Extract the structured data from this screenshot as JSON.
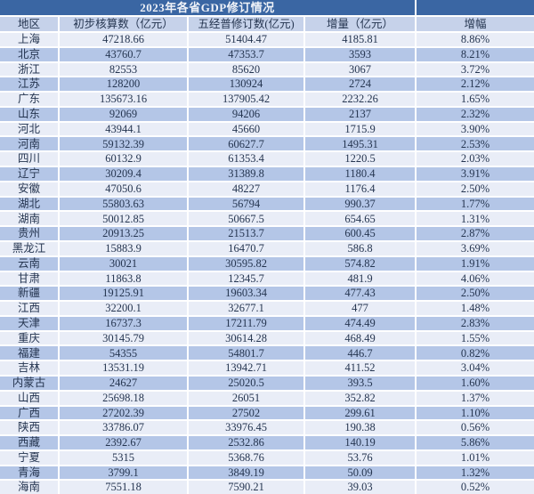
{
  "chart_data": {
    "type": "table",
    "title": "2023年各省GDP修订情况",
    "columns": [
      "地区",
      "初步核算数（亿元）",
      "五经普修订数(亿元)",
      "增量（亿元）",
      "增幅"
    ],
    "rows": [
      [
        "上海",
        "47218.66",
        "51404.47",
        "4185.81",
        "8.86%"
      ],
      [
        "北京",
        "43760.7",
        "47353.7",
        "3593",
        "8.21%"
      ],
      [
        "浙江",
        "82553",
        "85620",
        "3067",
        "3.72%"
      ],
      [
        "江苏",
        "128200",
        "130924",
        "2724",
        "2.12%"
      ],
      [
        "广东",
        "135673.16",
        "137905.42",
        "2232.26",
        "1.65%"
      ],
      [
        "山东",
        "92069",
        "94206",
        "2137",
        "2.32%"
      ],
      [
        "河北",
        "43944.1",
        "45660",
        "1715.9",
        "3.90%"
      ],
      [
        "河南",
        "59132.39",
        "60627.7",
        "1495.31",
        "2.53%"
      ],
      [
        "四川",
        "60132.9",
        "61353.4",
        "1220.5",
        "2.03%"
      ],
      [
        "辽宁",
        "30209.4",
        "31389.8",
        "1180.4",
        "3.91%"
      ],
      [
        "安徽",
        "47050.6",
        "48227",
        "1176.4",
        "2.50%"
      ],
      [
        "湖北",
        "55803.63",
        "56794",
        "990.37",
        "1.77%"
      ],
      [
        "湖南",
        "50012.85",
        "50667.5",
        "654.65",
        "1.31%"
      ],
      [
        "贵州",
        "20913.25",
        "21513.7",
        "600.45",
        "2.87%"
      ],
      [
        "黑龙江",
        "15883.9",
        "16470.7",
        "586.8",
        "3.69%"
      ],
      [
        "云南",
        "30021",
        "30595.82",
        "574.82",
        "1.91%"
      ],
      [
        "甘肃",
        "11863.8",
        "12345.7",
        "481.9",
        "4.06%"
      ],
      [
        "新疆",
        "19125.91",
        "19603.34",
        "477.43",
        "2.50%"
      ],
      [
        "江西",
        "32200.1",
        "32677.1",
        "477",
        "1.48%"
      ],
      [
        "天津",
        "16737.3",
        "17211.79",
        "474.49",
        "2.83%"
      ],
      [
        "重庆",
        "30145.79",
        "30614.28",
        "468.49",
        "1.55%"
      ],
      [
        "福建",
        "54355",
        "54801.7",
        "446.7",
        "0.82%"
      ],
      [
        "吉林",
        "13531.19",
        "13942.71",
        "411.52",
        "3.04%"
      ],
      [
        "内蒙古",
        "24627",
        "25020.5",
        "393.5",
        "1.60%"
      ],
      [
        "山西",
        "25698.18",
        "26051",
        "352.82",
        "1.37%"
      ],
      [
        "广西",
        "27202.39",
        "27502",
        "299.61",
        "1.10%"
      ],
      [
        "陕西",
        "33786.07",
        "33976.45",
        "190.38",
        "0.56%"
      ],
      [
        "西藏",
        "2392.67",
        "2532.86",
        "140.19",
        "5.86%"
      ],
      [
        "宁夏",
        "5315",
        "5368.76",
        "53.76",
        "1.01%"
      ],
      [
        "青海",
        "3799.1",
        "3849.19",
        "50.09",
        "1.32%"
      ],
      [
        "海南",
        "7551.18",
        "7590.21",
        "39.03",
        "0.52%"
      ]
    ]
  },
  "colors": {
    "title_bg": "#3A66A3",
    "title_text": "#EFF2F8",
    "header_bg": "#C6D2EA",
    "row_light": "#E9EDF7",
    "row_blue": "#B4C6E7",
    "text": "#253550",
    "grid": "#FFFFFF"
  }
}
